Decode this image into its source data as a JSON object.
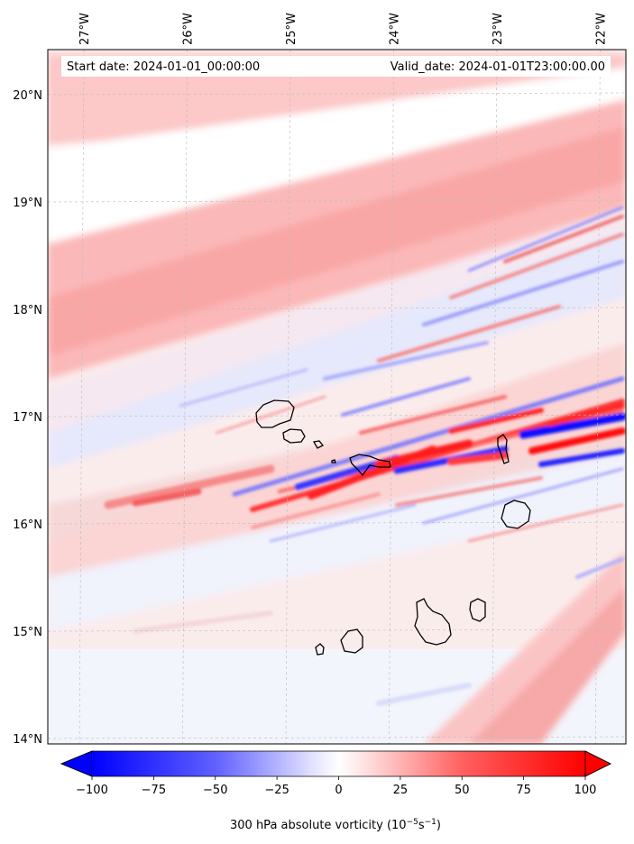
{
  "header": {
    "start_date": "Start date: 2024-01-01_00:00:00",
    "valid_date": "Valid_date: 2024-01-01T23:00:00.00"
  },
  "map": {
    "lon_range": [
      -27.35,
      -21.75
    ],
    "lat_range": [
      13.95,
      20.42
    ],
    "lon_ticks": [
      {
        "value": -27,
        "label": "27°W"
      },
      {
        "value": -26,
        "label": "26°W"
      },
      {
        "value": -25,
        "label": "25°W"
      },
      {
        "value": -24,
        "label": "24°W"
      },
      {
        "value": -23,
        "label": "23°W"
      },
      {
        "value": -22,
        "label": "22°W"
      }
    ],
    "lat_ticks": [
      {
        "value": 20,
        "label": "20°N"
      },
      {
        "value": 19,
        "label": "19°N"
      },
      {
        "value": 18,
        "label": "18°N"
      },
      {
        "value": 17,
        "label": "17°N"
      },
      {
        "value": 16,
        "label": "16°N"
      },
      {
        "value": 15,
        "label": "15°N"
      },
      {
        "value": 14,
        "label": "14°N"
      }
    ]
  },
  "colorbar": {
    "min": -100,
    "max": 100,
    "ticks": [
      {
        "value": -100,
        "label": "−100"
      },
      {
        "value": -75,
        "label": "−75"
      },
      {
        "value": -50,
        "label": "−50"
      },
      {
        "value": -25,
        "label": "−25"
      },
      {
        "value": 0,
        "label": "0"
      },
      {
        "value": 25,
        "label": "25"
      },
      {
        "value": 50,
        "label": "50"
      },
      {
        "value": 75,
        "label": "75"
      },
      {
        "value": 100,
        "label": "100"
      }
    ],
    "label_main": "300 hPa absolute vorticity (10",
    "label_exp1": "−5",
    "label_mid": "s",
    "label_exp2": "−1",
    "label_end": ")",
    "colors": {
      "negative": "#0000ff",
      "zero": "#ffffff",
      "positive": "#ff0000"
    }
  }
}
